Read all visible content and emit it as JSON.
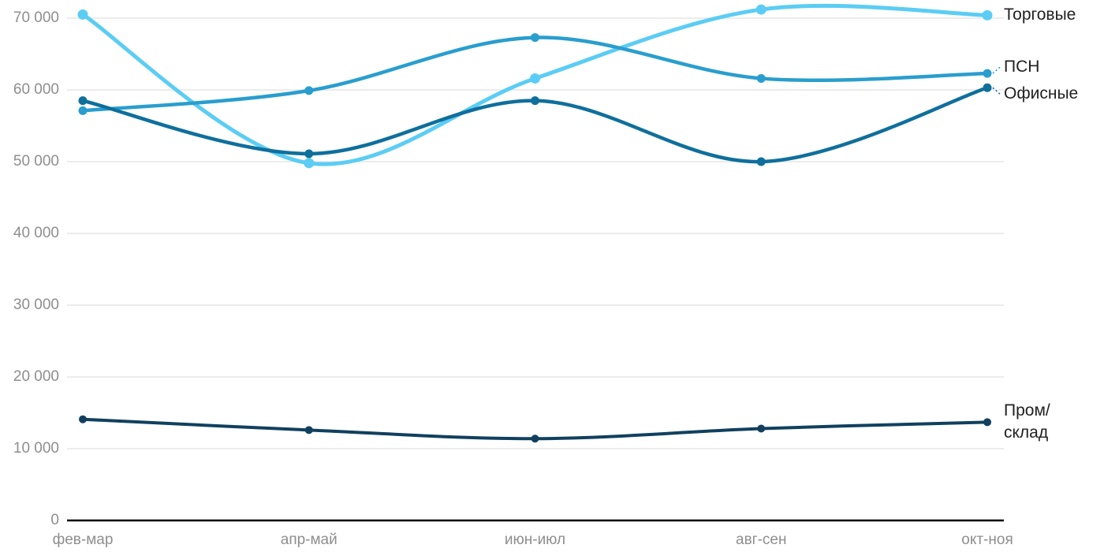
{
  "chart_data": {
    "type": "line",
    "title": "",
    "xlabel": "",
    "ylabel": "",
    "categories": [
      "фев-мар",
      "апр-май",
      "июн-июл",
      "авг-сен",
      "окт-ноя"
    ],
    "series": [
      {
        "name": "Торговые",
        "color": "#5BCDF4",
        "values": [
          70500,
          49800,
          61600,
          71200,
          70400
        ]
      },
      {
        "name": "ПСН",
        "color": "#299ECE",
        "values": [
          57100,
          59900,
          67300,
          61600,
          62300
        ]
      },
      {
        "name": "Офисные",
        "color": "#0F6F9C",
        "values": [
          58500,
          51100,
          58500,
          50000,
          60300
        ]
      },
      {
        "name": "Пром/склад",
        "color": "#11405F",
        "values": [
          14100,
          12600,
          11400,
          12800,
          13700
        ]
      }
    ],
    "ylim": [
      0,
      70000
    ],
    "ytick_step": 10000,
    "y_tick_labels": [
      "0",
      "10 000",
      "20 000",
      "30 000",
      "40 000",
      "50 000",
      "60 000",
      "70 000"
    ],
    "grid": true,
    "legend_position": "right-end-of-line",
    "colors": {
      "axis": "#000000",
      "gridline": "#E6E6E6",
      "tick_label": "#8E8E8E",
      "legend_label": "#212121",
      "background": "#FFFFFF"
    }
  }
}
